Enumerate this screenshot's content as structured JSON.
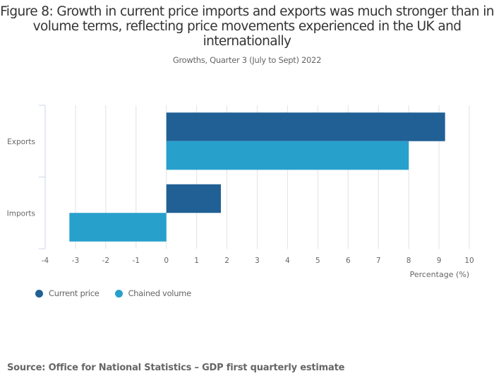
{
  "header": {
    "title": "Figure 8: Growth in current price imports and exports was much stronger than in volume terms, reflecting price movements experienced in the UK and internationally",
    "subtitle": "Growths, Quarter 3 (July to Sept) 2022"
  },
  "chart_data": {
    "type": "bar",
    "orientation": "horizontal",
    "title": "Figure 8: Growth in current price imports and exports was much stronger than in volume terms, reflecting price movements experienced in the UK and internationally",
    "subtitle": "Growths, Quarter 3 (July to Sept) 2022",
    "categories": [
      "Exports",
      "Imports"
    ],
    "series": [
      {
        "name": "Current price",
        "color": "#206095",
        "values": [
          9.2,
          1.8
        ]
      },
      {
        "name": "Chained volume",
        "color": "#27a0cc",
        "values": [
          8.0,
          -3.2
        ]
      }
    ],
    "xlabel": "Percentage (%)",
    "ylabel": "",
    "xlim": [
      -4,
      10
    ],
    "xticks": [
      "-4",
      "-3",
      "-2",
      "-1",
      "0",
      "1",
      "2",
      "3",
      "4",
      "5",
      "6",
      "7",
      "8",
      "9",
      "10"
    ],
    "grid": true,
    "legend": "bottom-left"
  },
  "legend": {
    "items": [
      {
        "label": "Current price",
        "color": "#206095"
      },
      {
        "label": "Chained volume",
        "color": "#27a0cc"
      }
    ]
  },
  "footer": {
    "source": "Source: Office for National Statistics – GDP first quarterly estimate"
  }
}
